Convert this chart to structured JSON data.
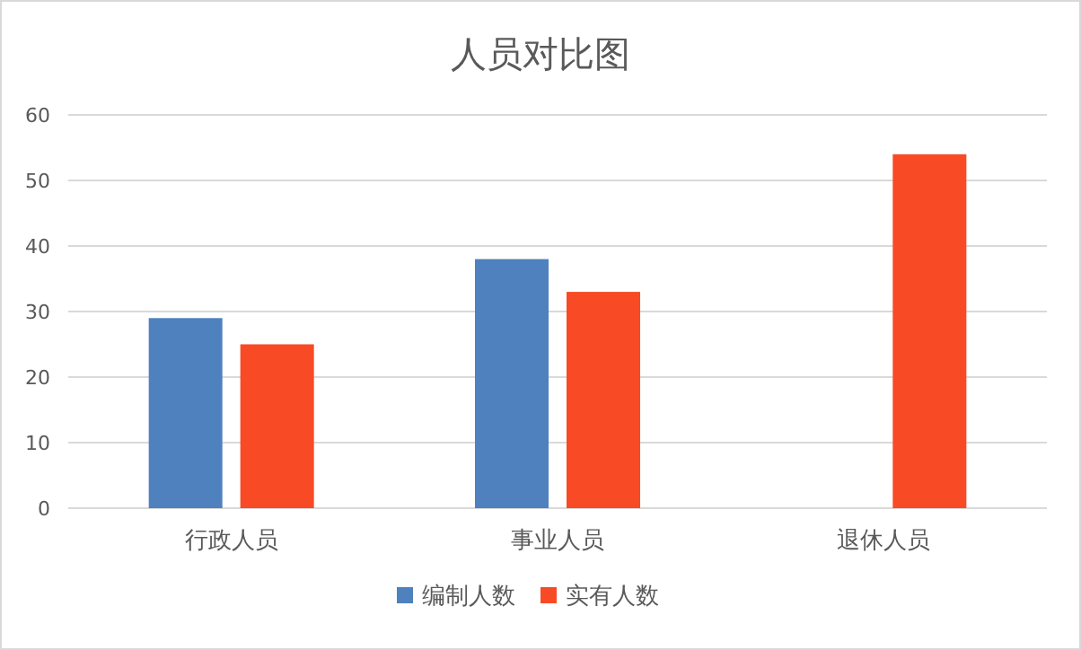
{
  "chart_data": {
    "type": "bar",
    "title": "人员对比图",
    "categories": [
      "行政人员",
      "事业人员",
      "退休人员"
    ],
    "series": [
      {
        "name": "编制人数",
        "color": "#4e81bd",
        "values": [
          29,
          38,
          null
        ]
      },
      {
        "name": "实有人数",
        "color": "#f84a25",
        "values": [
          25,
          33,
          54
        ]
      }
    ],
    "ylim": [
      0,
      60
    ],
    "yticks": [
      0,
      10,
      20,
      30,
      40,
      50,
      60
    ],
    "grid": "y",
    "legend": "bottom"
  }
}
